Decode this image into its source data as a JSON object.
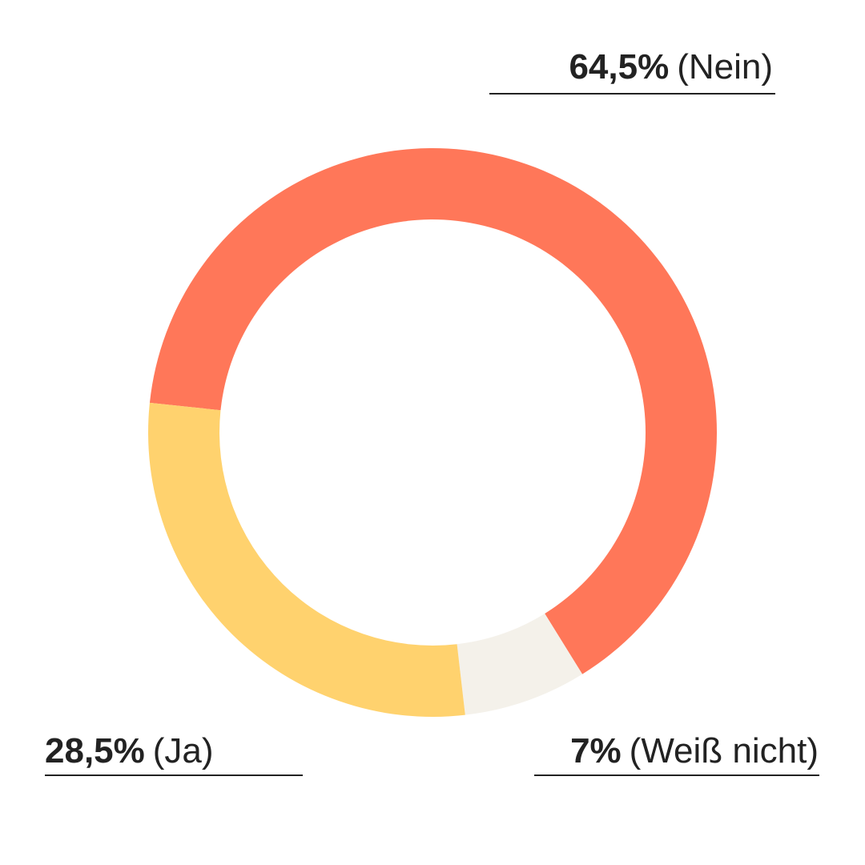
{
  "chart_data": {
    "type": "donut",
    "categories": [
      "(Nein)",
      "(Weiß nicht)",
      "(Ja)"
    ],
    "values": [
      64.5,
      7,
      28.5
    ],
    "value_labels": [
      "64,5%",
      "7%",
      "28,5%"
    ],
    "colors": [
      "#ff7759",
      "#f4f1ea",
      "#ffd26e"
    ]
  }
}
